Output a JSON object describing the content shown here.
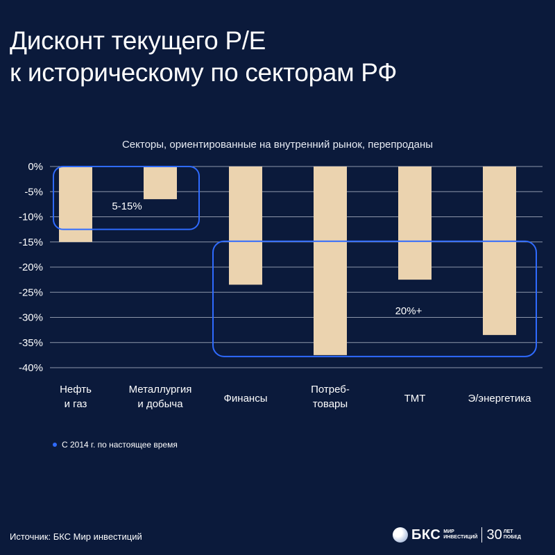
{
  "title_lines": [
    "Дисконт текущего P/E",
    "к историческому по секторам РФ"
  ],
  "subtitle": "Секторы, ориентированные на внутренний рынок, перепроданы",
  "chart_data": {
    "type": "bar",
    "categories": [
      [
        "Нефть",
        "и газ"
      ],
      [
        "Металлургия",
        "и добыча"
      ],
      [
        "Финансы"
      ],
      [
        "Потреб-",
        "товары"
      ],
      [
        "ТМТ"
      ],
      [
        "Э/энергетика"
      ]
    ],
    "values": [
      -15,
      -6.5,
      -23.5,
      -37.5,
      -22.5,
      -33.5
    ],
    "ylim": [
      -40,
      0
    ],
    "yticks": [
      0,
      -5,
      -10,
      -15,
      -20,
      -25,
      -30,
      -35,
      -40
    ],
    "ytick_labels": [
      "0%",
      "-5%",
      "-10%",
      "-15%",
      "-20%",
      "-25%",
      "-30%",
      "-35%",
      "-40%"
    ],
    "grid": true,
    "bar_color": "#ebd3af",
    "annotations": [
      {
        "label": "5-15%",
        "categories": [
          0,
          1
        ],
        "y_range": [
          0,
          -12.5
        ]
      },
      {
        "label": "20%+",
        "categories": [
          2,
          5
        ],
        "y_range": [
          -15,
          -37.5
        ]
      }
    ]
  },
  "legend": {
    "text": "С 2014 г. по настоящее время",
    "color": "#2f6bff"
  },
  "source": "Источник: БКС Мир инвестиций",
  "logo": {
    "brand": "БКС",
    "brand_sub": [
      "МИР",
      "ИНВЕСТИЦИЙ"
    ],
    "anniversary": "30",
    "anniversary_sub": [
      "ЛЕТ",
      "ПОБЕД"
    ]
  },
  "colors": {
    "background": "#0b1a3b",
    "grid": "#8e97ab",
    "highlight_box": "#2f6bff"
  }
}
